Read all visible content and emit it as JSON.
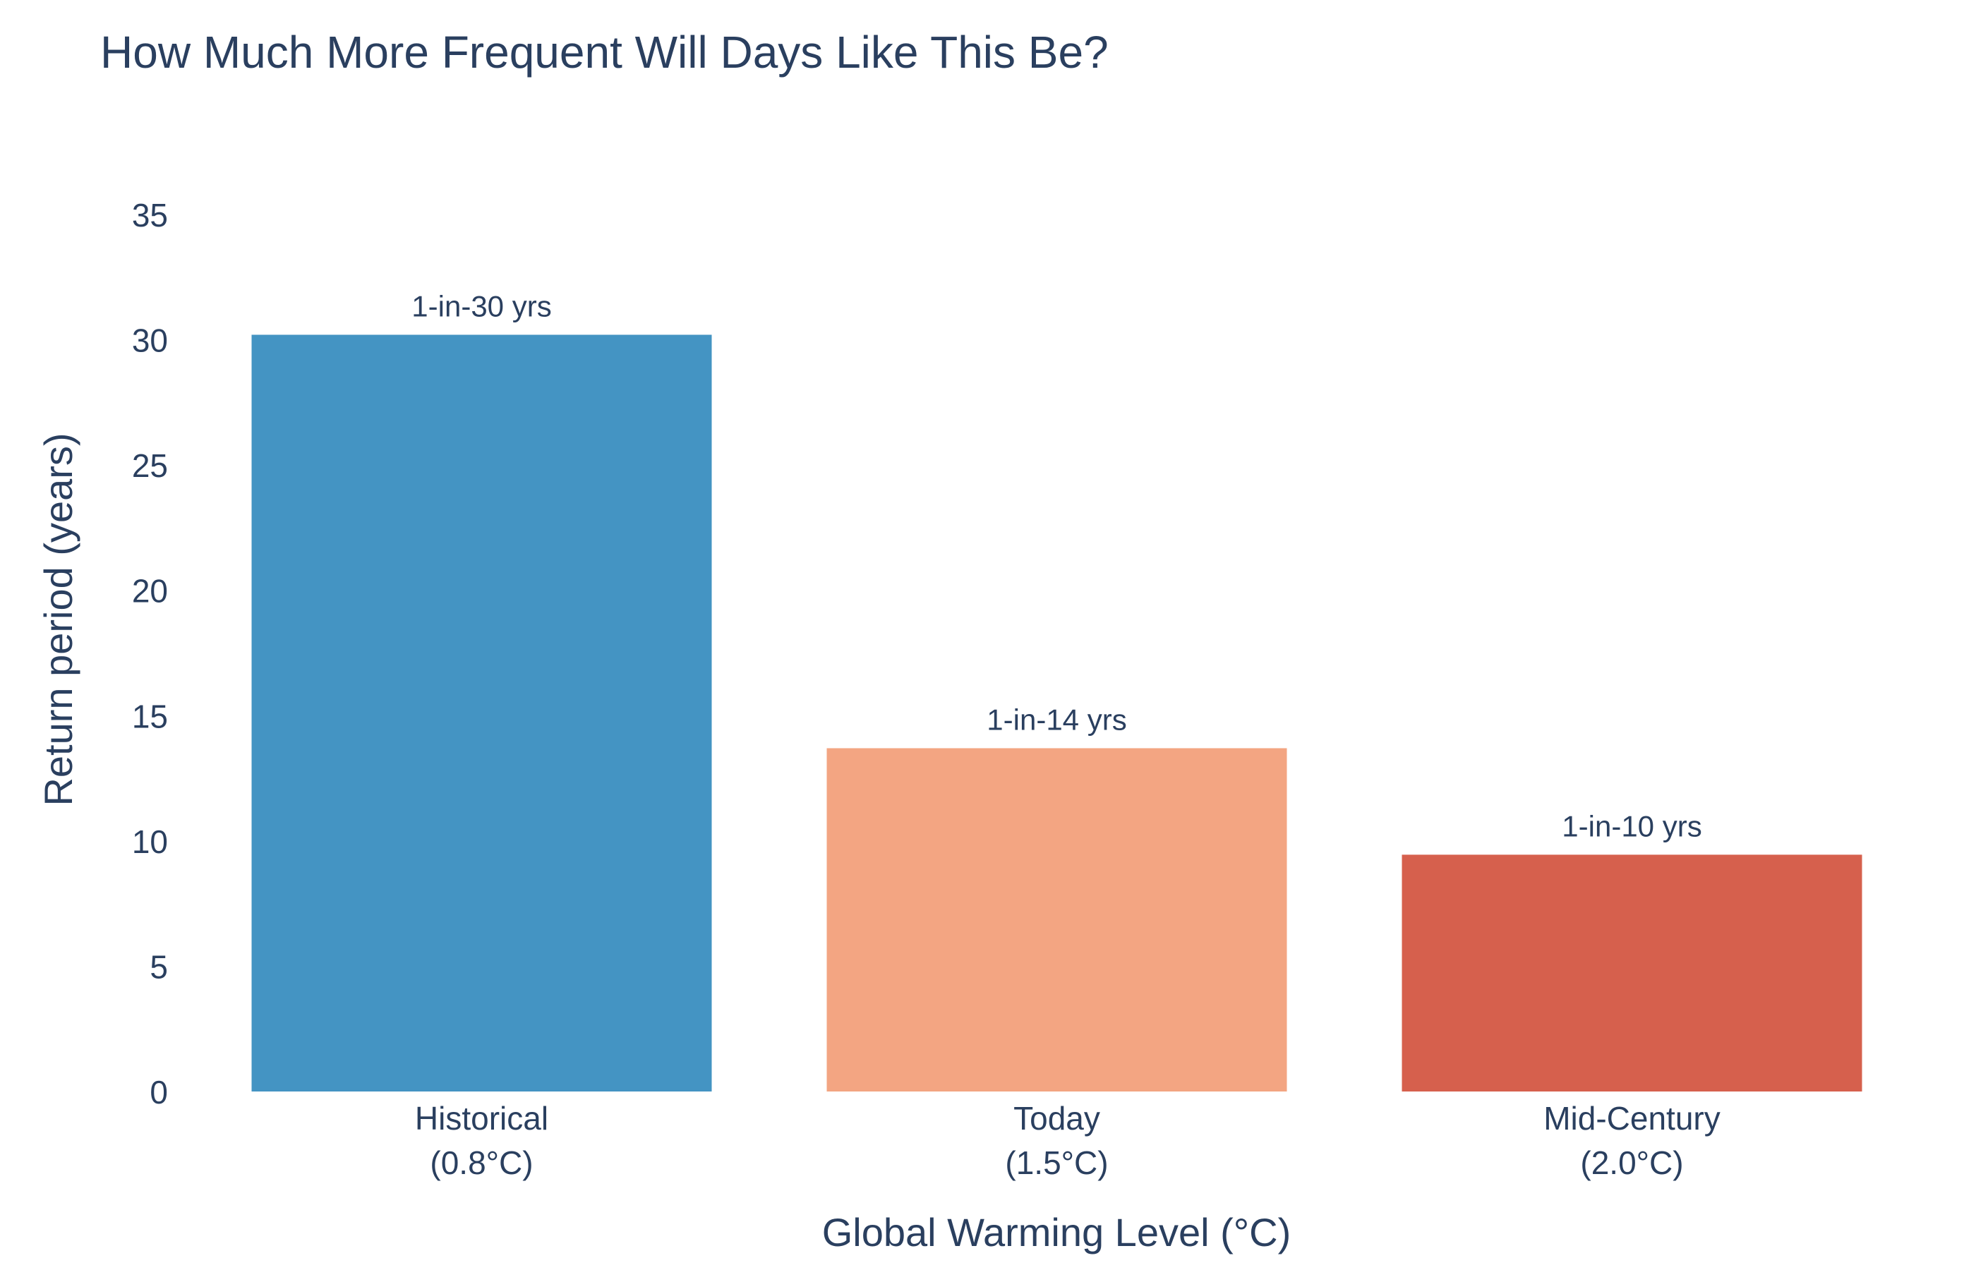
{
  "chart_data": {
    "type": "bar",
    "title": "How Much More Frequent Will Days Like This Be?",
    "xlabel": "Global Warming Level (°C)",
    "ylabel": "Return period (years)",
    "ylim": [
      0,
      35
    ],
    "yticks": [
      0,
      5,
      10,
      15,
      20,
      25,
      30,
      35
    ],
    "grid": false,
    "categories": [
      {
        "line1": "Historical",
        "line2": "(0.8°C)"
      },
      {
        "line1": "Today",
        "line2": "(1.5°C)"
      },
      {
        "line1": "Mid-Century",
        "line2": "(2.0°C)"
      }
    ],
    "values": [
      30.2,
      13.7,
      9.45
    ],
    "data_labels": [
      "1-in-30 yrs",
      "1-in-14 yrs",
      "1-in-10 yrs"
    ],
    "colors": [
      "#4494c3",
      "#f3a582",
      "#d6604d"
    ]
  }
}
